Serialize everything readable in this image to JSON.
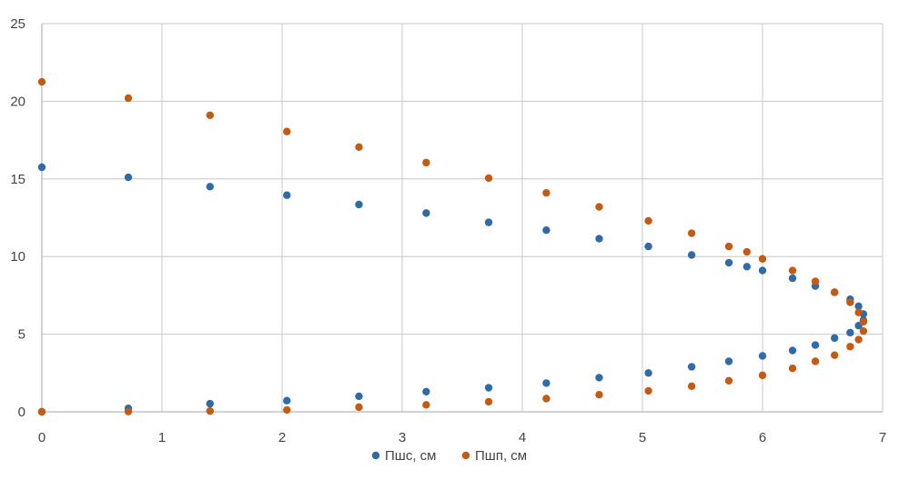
{
  "chart_data": {
    "type": "scatter",
    "title": "",
    "xlabel": "",
    "ylabel": "",
    "xlim": [
      0,
      7
    ],
    "ylim": [
      0,
      25
    ],
    "x_ticks": [
      "0",
      "1",
      "2",
      "3",
      "4",
      "5",
      "6",
      "7"
    ],
    "y_ticks": [
      "0",
      "5",
      "10",
      "15",
      "20",
      "25"
    ],
    "grid": true,
    "legend_position": "bottom",
    "series": [
      {
        "name": "Пшс, см",
        "color": "#2E6BA8",
        "points": [
          [
            0,
            15.75
          ],
          [
            0.72,
            15.1
          ],
          [
            1.4,
            14.5
          ],
          [
            2.04,
            13.95
          ],
          [
            2.64,
            13.35
          ],
          [
            3.2,
            12.8
          ],
          [
            3.72,
            12.2
          ],
          [
            4.2,
            11.7
          ],
          [
            4.64,
            11.15
          ],
          [
            5.05,
            10.65
          ],
          [
            5.41,
            10.1
          ],
          [
            5.72,
            9.6
          ],
          [
            5.87,
            9.35
          ],
          [
            6.0,
            9.1
          ],
          [
            6.25,
            8.6
          ],
          [
            6.44,
            8.1
          ],
          [
            6.6,
            7.7
          ],
          [
            6.73,
            7.25
          ],
          [
            6.8,
            6.8
          ],
          [
            6.84,
            6.3
          ],
          [
            6.84,
            5.9
          ],
          [
            6.8,
            5.55
          ],
          [
            6.73,
            5.1
          ],
          [
            6.6,
            4.75
          ],
          [
            6.44,
            4.3
          ],
          [
            6.25,
            3.95
          ],
          [
            6.0,
            3.6
          ],
          [
            5.72,
            3.25
          ],
          [
            5.41,
            2.9
          ],
          [
            5.05,
            2.5
          ],
          [
            4.64,
            2.2
          ],
          [
            4.2,
            1.85
          ],
          [
            3.72,
            1.55
          ],
          [
            3.2,
            1.3
          ],
          [
            2.64,
            1.0
          ],
          [
            2.04,
            0.72
          ],
          [
            1.4,
            0.52
          ],
          [
            0.72,
            0.22
          ],
          [
            0,
            0.0
          ]
        ]
      },
      {
        "name": "Пшп, см",
        "color": "#C55A11",
        "points": [
          [
            0,
            21.25
          ],
          [
            0.72,
            20.2
          ],
          [
            1.4,
            19.1
          ],
          [
            2.04,
            18.05
          ],
          [
            2.64,
            17.05
          ],
          [
            3.2,
            16.05
          ],
          [
            3.72,
            15.05
          ],
          [
            4.2,
            14.1
          ],
          [
            4.64,
            13.2
          ],
          [
            5.05,
            12.3
          ],
          [
            5.41,
            11.5
          ],
          [
            5.72,
            10.65
          ],
          [
            5.87,
            10.3
          ],
          [
            6.0,
            9.85
          ],
          [
            6.25,
            9.1
          ],
          [
            6.44,
            8.4
          ],
          [
            6.6,
            7.7
          ],
          [
            6.73,
            7.05
          ],
          [
            6.8,
            6.4
          ],
          [
            6.84,
            5.8
          ],
          [
            6.84,
            5.2
          ],
          [
            6.8,
            4.65
          ],
          [
            6.73,
            4.2
          ],
          [
            6.6,
            3.65
          ],
          [
            6.44,
            3.25
          ],
          [
            6.25,
            2.8
          ],
          [
            6.0,
            2.35
          ],
          [
            5.72,
            2.0
          ],
          [
            5.41,
            1.65
          ],
          [
            5.05,
            1.35
          ],
          [
            4.64,
            1.1
          ],
          [
            4.2,
            0.85
          ],
          [
            3.72,
            0.65
          ],
          [
            3.2,
            0.45
          ],
          [
            2.64,
            0.3
          ],
          [
            2.04,
            0.12
          ],
          [
            1.4,
            0.05
          ],
          [
            0.72,
            0.02
          ],
          [
            0,
            0.0
          ]
        ]
      }
    ]
  }
}
